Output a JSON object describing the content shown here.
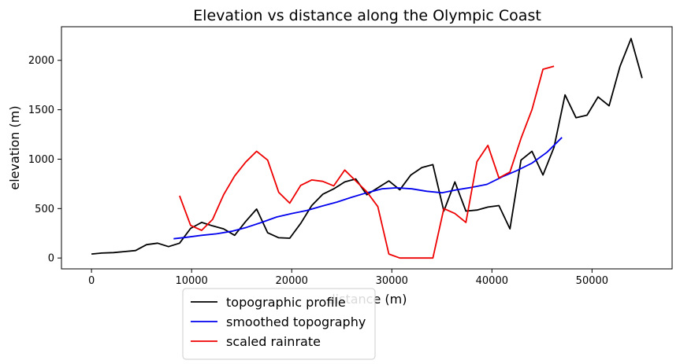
{
  "chart_data": {
    "type": "line",
    "title": "Elevation vs distance along the Olympic Coast",
    "xlabel": "distance (m)",
    "ylabel": "elevation (m)",
    "xlim": [
      -3000,
      58000
    ],
    "ylim": [
      -110,
      2340
    ],
    "xticks": [
      0,
      10000,
      20000,
      30000,
      40000,
      50000
    ],
    "yticks": [
      0,
      500,
      1000,
      1500,
      2000
    ],
    "grid": false,
    "legend_position": "lower-left",
    "series": [
      {
        "name": "topographic profile",
        "color": "#000000",
        "x": [
          0,
          1000,
          2200,
          3300,
          4400,
          5500,
          6600,
          7700,
          8800,
          9900,
          11000,
          12100,
          13200,
          14300,
          15400,
          16500,
          17600,
          18700,
          19800,
          20900,
          22000,
          23100,
          24200,
          25300,
          26400,
          27500,
          28600,
          29700,
          30800,
          31900,
          33000,
          34100,
          35200,
          36300,
          37400,
          38500,
          39600,
          40700,
          41800,
          42900,
          44000,
          45100,
          46200,
          47300,
          48400,
          49500,
          50600,
          51700,
          52800,
          53900,
          55000
        ],
        "y": [
          40,
          50,
          55,
          65,
          75,
          135,
          150,
          115,
          150,
          300,
          360,
          325,
          295,
          230,
          370,
          495,
          255,
          205,
          200,
          350,
          530,
          645,
          700,
          770,
          800,
          640,
          710,
          780,
          690,
          840,
          915,
          945,
          475,
          770,
          475,
          485,
          515,
          530,
          295,
          990,
          1080,
          840,
          1120,
          1650,
          1420,
          1445,
          1630,
          1540,
          1940,
          2220,
          1820
        ]
      },
      {
        "name": "smoothed topography",
        "color": "#0000ee",
        "x": [
          8200,
          9500,
          11000,
          12500,
          14000,
          15500,
          17000,
          18500,
          20000,
          21500,
          23000,
          24500,
          26000,
          27500,
          29000,
          30500,
          32000,
          33500,
          35000,
          36500,
          38000,
          39500,
          41000,
          42500,
          44000,
          45500,
          47000
        ],
        "y": [
          195,
          210,
          230,
          245,
          270,
          310,
          360,
          415,
          450,
          480,
          525,
          565,
          615,
          660,
          700,
          710,
          700,
          675,
          660,
          690,
          715,
          745,
          820,
          885,
          960,
          1070,
          1220
        ]
      },
      {
        "name": "scaled rainrate",
        "color": "#ee0000",
        "x": [
          8800,
          9900,
          11000,
          12100,
          13200,
          14300,
          15400,
          16500,
          17600,
          18700,
          19800,
          20900,
          22000,
          23100,
          24200,
          25300,
          26400,
          27500,
          28600,
          29700,
          30800,
          31900,
          33000,
          34100,
          35200,
          36300,
          37400,
          38500,
          39600,
          40700,
          41800,
          42900,
          44000,
          45100,
          46200
        ],
        "y": [
          630,
          330,
          280,
          390,
          640,
          830,
          970,
          1080,
          990,
          665,
          555,
          735,
          790,
          775,
          730,
          890,
          780,
          670,
          520,
          40,
          0,
          0,
          0,
          0,
          500,
          450,
          360,
          975,
          1140,
          810,
          870,
          1210,
          1500,
          1910,
          1940
        ]
      }
    ]
  }
}
